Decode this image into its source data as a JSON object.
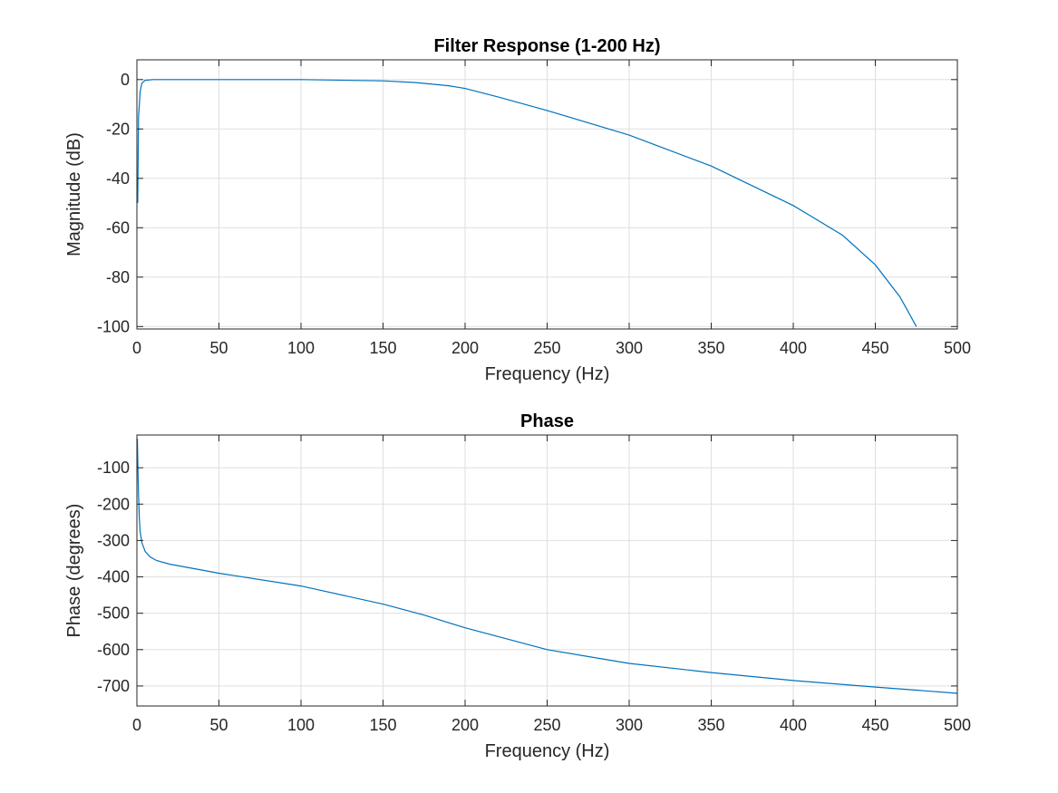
{
  "chart_data": [
    {
      "type": "line",
      "title": "Filter Response (1-200 Hz)",
      "xlabel": "Frequency (Hz)",
      "ylabel": "Magnitude (dB)",
      "xlim": [
        0,
        500
      ],
      "ylim": [
        -101,
        8
      ],
      "xticks": [
        0,
        50,
        100,
        150,
        200,
        250,
        300,
        350,
        400,
        450,
        500
      ],
      "xtick_labels": [
        "0",
        "50",
        "100",
        "150",
        "200",
        "250",
        "300",
        "350",
        "400",
        "450",
        "500"
      ],
      "yticks": [
        0,
        -20,
        -40,
        -60,
        -80,
        -100
      ],
      "ytick_labels": [
        "0",
        "-20",
        "-40",
        "-60",
        "-80",
        "-100"
      ],
      "grid": true,
      "color": "#0072bd",
      "series": [
        {
          "x": [
            0.5,
            1,
            2,
            3,
            5,
            10,
            50,
            100,
            150,
            170,
            190,
            200,
            220,
            250,
            300,
            350,
            400,
            430,
            450,
            465,
            475
          ],
          "values": [
            -50,
            -15,
            -5,
            -1.5,
            -0.3,
            0,
            0,
            0,
            -0.5,
            -1.2,
            -2.5,
            -3.6,
            -7,
            -12.5,
            -22.5,
            -35,
            -51,
            -63,
            -75,
            -88,
            -100
          ]
        }
      ]
    },
    {
      "type": "line",
      "title": "Phase",
      "xlabel": "Frequency (Hz)",
      "ylabel": "Phase (degrees)",
      "xlim": [
        0,
        500
      ],
      "ylim": [
        -755,
        -10
      ],
      "xticks": [
        0,
        50,
        100,
        150,
        200,
        250,
        300,
        350,
        400,
        450,
        500
      ],
      "xtick_labels": [
        "0",
        "50",
        "100",
        "150",
        "200",
        "250",
        "300",
        "350",
        "400",
        "450",
        "500"
      ],
      "yticks": [
        -100,
        -200,
        -300,
        -400,
        -500,
        -600,
        -700
      ],
      "ytick_labels": [
        "-100",
        "-200",
        "-300",
        "-400",
        "-500",
        "-600",
        "-700"
      ],
      "grid": true,
      "color": "#0072bd",
      "series": [
        {
          "x": [
            0.3,
            0.7,
            1,
            1.5,
            2,
            3,
            5,
            8,
            12,
            20,
            50,
            100,
            150,
            175,
            200,
            250,
            300,
            350,
            400,
            450,
            500
          ],
          "values": [
            -20,
            -120,
            -175,
            -240,
            -275,
            -305,
            -330,
            -345,
            -355,
            -365,
            -390,
            -425,
            -475,
            -505,
            -540,
            -600,
            -638,
            -663,
            -685,
            -703,
            -720
          ]
        }
      ]
    }
  ]
}
